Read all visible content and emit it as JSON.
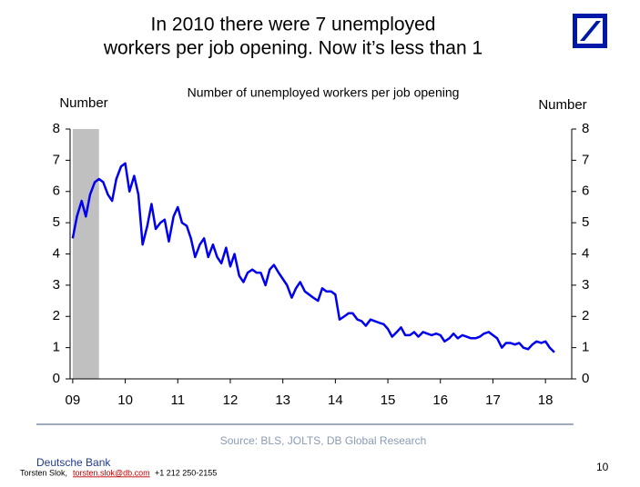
{
  "chart_data": {
    "type": "line",
    "title": [
      "In 2010 there were 7 unemployed",
      "workers per job opening. Now it’s less than 1"
    ],
    "subtitle": "Number of unemployed workers per job opening",
    "ylabel": "Number",
    "y2label": "Number",
    "source": "Source: BLS, JOLTS, DB Global Research",
    "footer": {
      "company": "Deutsche Bank",
      "author": "Torsten Slok,",
      "email": "torsten.slok@db.com",
      "phone": "+1 212 250-2155",
      "page": "10"
    },
    "recession": {
      "x": [
        2009,
        2009.5
      ],
      "color": "#c0c0c0"
    },
    "xlim": [
      2008.95,
      2018.5
    ],
    "xticks": [
      {
        "value": 2009,
        "label": "09"
      },
      {
        "value": 2010,
        "label": "10"
      },
      {
        "value": 2011,
        "label": "11"
      },
      {
        "value": 2012,
        "label": "12"
      },
      {
        "value": 2013,
        "label": "13"
      },
      {
        "value": 2014,
        "label": "14"
      },
      {
        "value": 2015,
        "label": "15"
      },
      {
        "value": 2016,
        "label": "16"
      },
      {
        "value": 2017,
        "label": "17"
      },
      {
        "value": 2018,
        "label": "18"
      }
    ],
    "ylim": [
      0,
      8
    ],
    "yticks": [
      0,
      1,
      2,
      3,
      4,
      5,
      6,
      7,
      8
    ],
    "y2lim": [
      0,
      8
    ],
    "y2ticks": [
      0,
      1,
      2,
      3,
      4,
      5,
      6,
      7,
      8
    ],
    "x": [
      2009.0,
      2009.08,
      2009.17,
      2009.25,
      2009.33,
      2009.42,
      2009.5,
      2009.58,
      2009.67,
      2009.75,
      2009.83,
      2009.92,
      2010.0,
      2010.08,
      2010.17,
      2010.25,
      2010.33,
      2010.42,
      2010.5,
      2010.58,
      2010.67,
      2010.75,
      2010.83,
      2010.92,
      2011.0,
      2011.08,
      2011.17,
      2011.25,
      2011.33,
      2011.42,
      2011.5,
      2011.58,
      2011.67,
      2011.75,
      2011.83,
      2011.92,
      2012.0,
      2012.08,
      2012.17,
      2012.25,
      2012.33,
      2012.42,
      2012.5,
      2012.58,
      2012.67,
      2012.75,
      2012.83,
      2012.92,
      2013.0,
      2013.08,
      2013.17,
      2013.25,
      2013.33,
      2013.42,
      2013.5,
      2013.58,
      2013.67,
      2013.75,
      2013.83,
      2013.92,
      2014.0,
      2014.08,
      2014.17,
      2014.25,
      2014.33,
      2014.42,
      2014.5,
      2014.58,
      2014.67,
      2014.75,
      2014.83,
      2014.92,
      2015.0,
      2015.08,
      2015.17,
      2015.25,
      2015.33,
      2015.42,
      2015.5,
      2015.58,
      2015.67,
      2015.75,
      2015.83,
      2015.92,
      2016.0,
      2016.08,
      2016.17,
      2016.25,
      2016.33,
      2016.42,
      2016.5,
      2016.58,
      2016.67,
      2016.75,
      2016.83,
      2016.92,
      2017.0,
      2017.08,
      2017.17,
      2017.25,
      2017.33,
      2017.42,
      2017.5,
      2017.58,
      2017.67,
      2017.75,
      2017.83,
      2017.92,
      2018.0,
      2018.08,
      2018.17
    ],
    "series": [
      {
        "name": "Number of unemployed workers per job opening",
        "color": "#0000ee",
        "values": [
          4.5,
          5.2,
          5.7,
          5.2,
          5.9,
          6.3,
          6.4,
          6.3,
          5.9,
          5.7,
          6.4,
          6.8,
          6.9,
          6.0,
          6.5,
          5.9,
          4.3,
          4.9,
          5.6,
          4.8,
          5.0,
          5.1,
          4.4,
          5.2,
          5.5,
          5.0,
          4.9,
          4.5,
          3.9,
          4.3,
          4.5,
          3.9,
          4.3,
          3.9,
          3.7,
          4.2,
          3.6,
          4.0,
          3.3,
          3.1,
          3.4,
          3.5,
          3.4,
          3.4,
          3.0,
          3.5,
          3.65,
          3.4,
          3.2,
          3.0,
          2.6,
          2.9,
          3.1,
          2.8,
          2.7,
          2.6,
          2.5,
          2.9,
          2.8,
          2.8,
          2.7,
          1.9,
          2.0,
          2.1,
          2.1,
          1.9,
          1.85,
          1.7,
          1.9,
          1.85,
          1.8,
          1.75,
          1.6,
          1.35,
          1.5,
          1.65,
          1.4,
          1.4,
          1.5,
          1.35,
          1.5,
          1.45,
          1.4,
          1.45,
          1.4,
          1.2,
          1.3,
          1.45,
          1.3,
          1.4,
          1.35,
          1.3,
          1.3,
          1.35,
          1.45,
          1.5,
          1.4,
          1.3,
          1.0,
          1.15,
          1.15,
          1.1,
          1.15,
          1.0,
          0.95,
          1.1,
          1.2,
          1.15,
          1.2,
          1.0,
          0.85
        ]
      }
    ]
  }
}
